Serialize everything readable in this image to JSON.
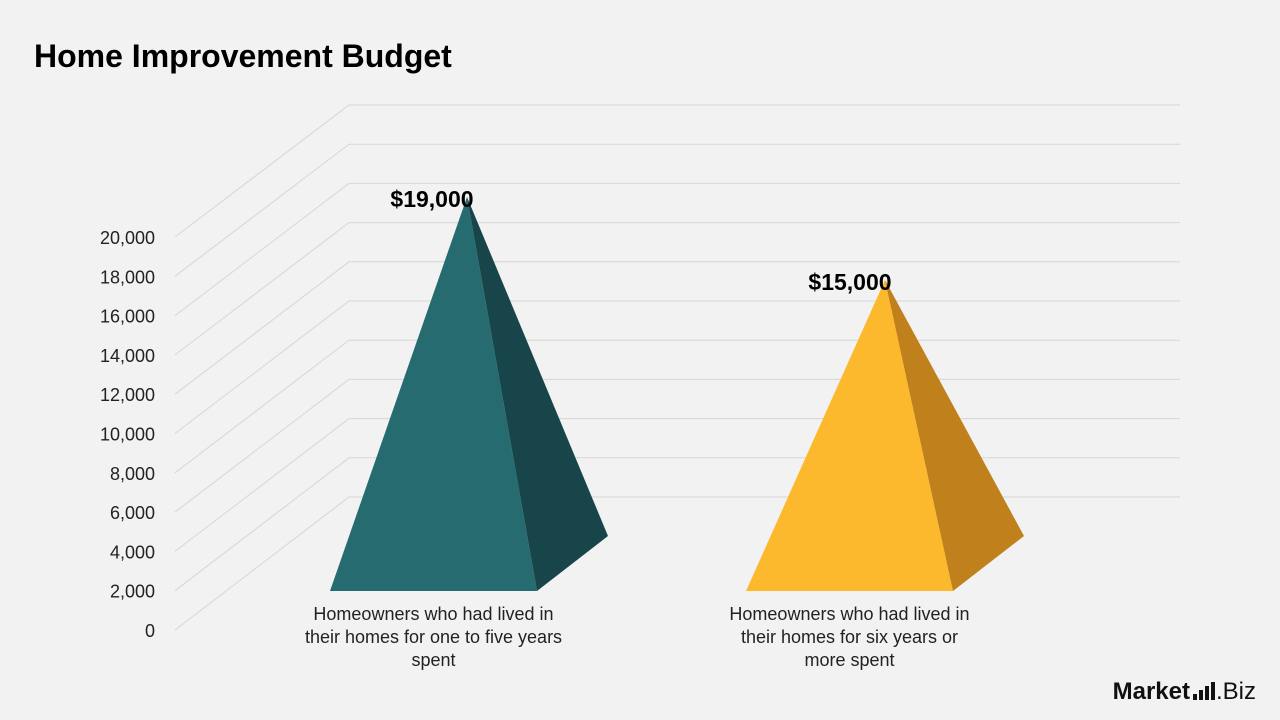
{
  "chart_data": {
    "type": "bar",
    "style": "3d-pyramid",
    "title": "Home Improvement Budget",
    "categories": [
      "Homeowners who had lived in their homes for one to five years spent",
      "Homeowners who had lived in their homes for six years or more spent"
    ],
    "values": [
      19000,
      15000
    ],
    "data_labels": [
      "$19,000",
      "$15,000"
    ],
    "colors": [
      {
        "front": "#266b70",
        "side": "#18454a"
      },
      {
        "front": "#fdb92d",
        "side": "#c0801b"
      }
    ],
    "ylim": [
      0,
      20000
    ],
    "yticks": [
      0,
      2000,
      4000,
      6000,
      8000,
      10000,
      12000,
      14000,
      16000,
      18000,
      20000
    ],
    "ytick_labels": [
      "0",
      "2,000",
      "4,000",
      "6,000",
      "8,000",
      "10,000",
      "12,000",
      "14,000",
      "16,000",
      "18,000",
      "20,000"
    ],
    "grid": true,
    "legend": "none"
  },
  "brand": {
    "prefix": "Market",
    "suffix": ".Biz"
  }
}
